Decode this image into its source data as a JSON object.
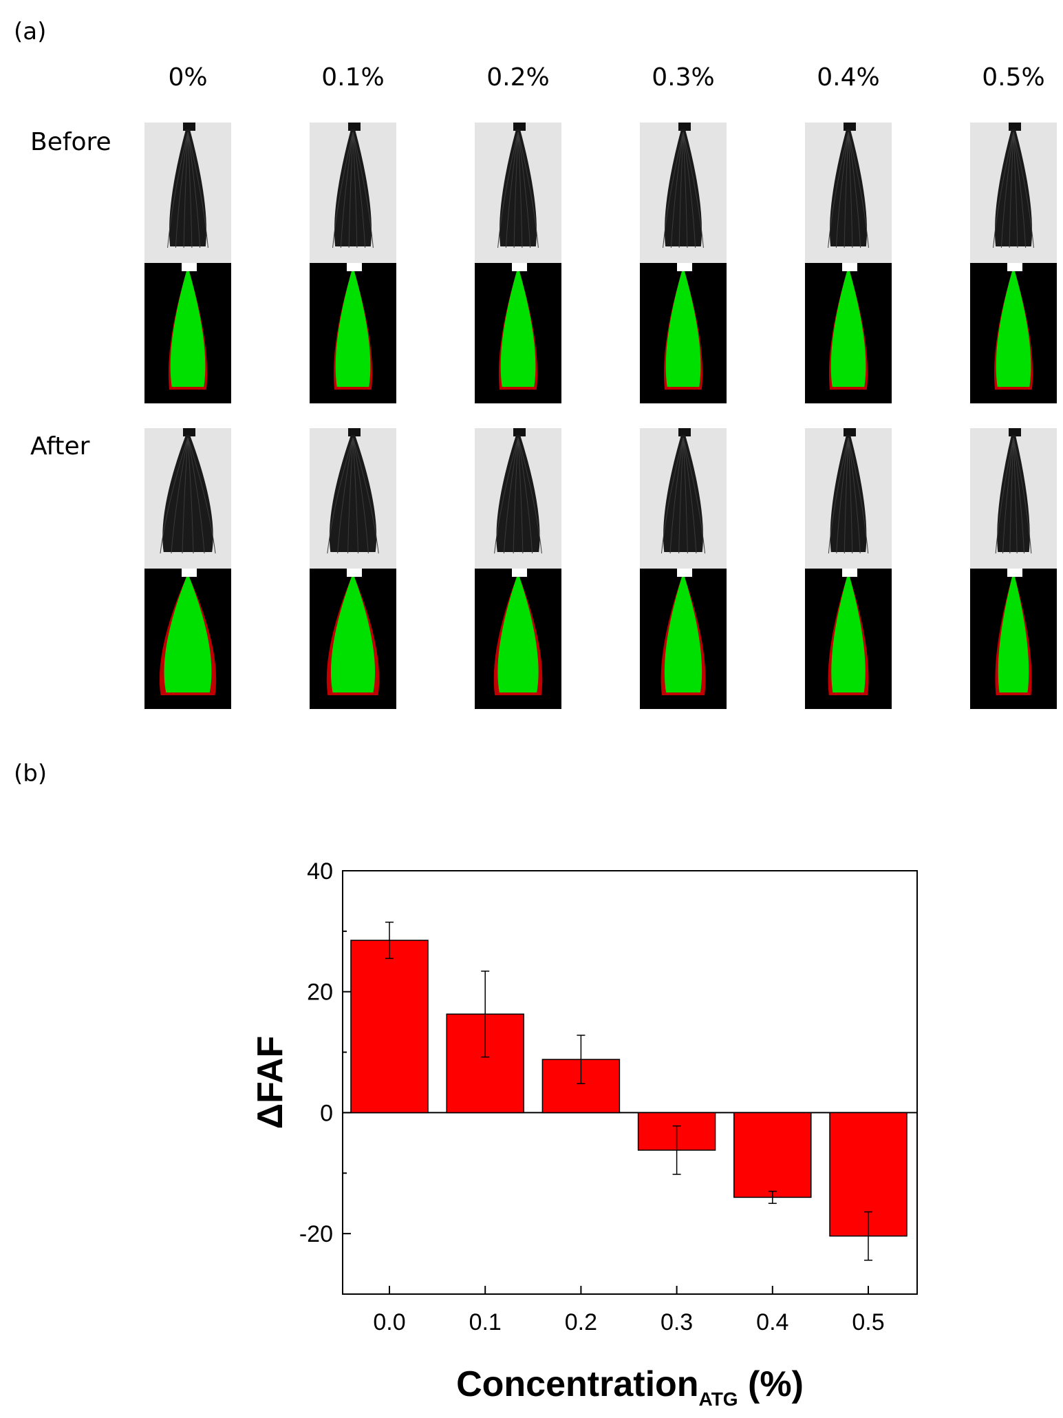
{
  "figure": {
    "panel_a_label": "(a)",
    "panel_b_label": "(b)",
    "concentrations": [
      "0%",
      "0.1%",
      "0.2%",
      "0.3%",
      "0.4%",
      "0.5%"
    ],
    "row_labels": {
      "before": "Before",
      "after": "After"
    },
    "colors": {
      "hair_fitted": "#00e000",
      "hair_frizz": "#c00000",
      "photo_bg": "#e4e4e4",
      "bar": "#ff0000"
    }
  },
  "chart_data": {
    "type": "bar",
    "categories": [
      "0.0",
      "0.1",
      "0.2",
      "0.3",
      "0.4",
      "0.5"
    ],
    "values": [
      28.5,
      16.3,
      8.8,
      -6.2,
      -14.0,
      -20.4
    ],
    "errors": [
      3.0,
      7.1,
      4.0,
      4.0,
      1.0,
      4.0
    ],
    "title": "",
    "xlabel_main": "Concentration",
    "xlabel_sub": "ATG",
    "xlabel_unit": " (%)",
    "ylabel": "ΔFAF",
    "ylim": [
      -30,
      40
    ],
    "yticks": [
      40,
      20,
      0,
      -20
    ],
    "ytick_labels": [
      "40",
      "20",
      "0",
      "-20"
    ],
    "grid": false,
    "legend": "none",
    "bar_color": "#ff0000"
  }
}
